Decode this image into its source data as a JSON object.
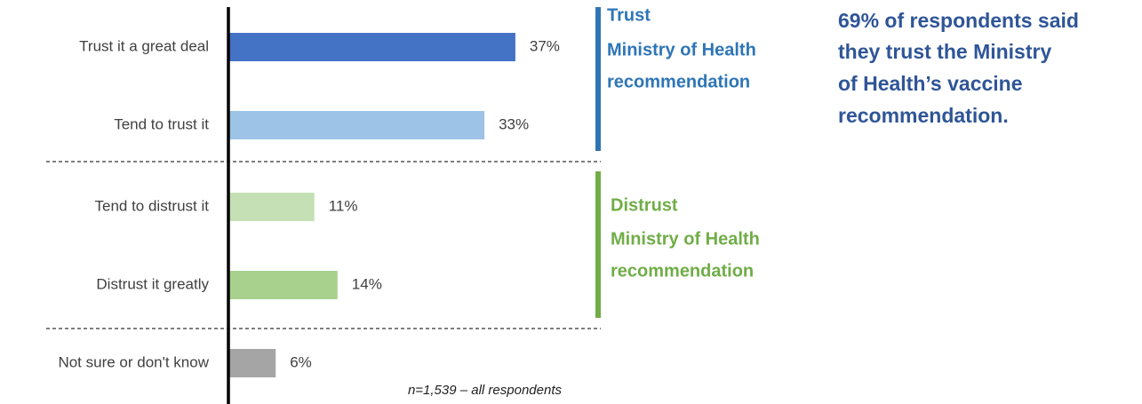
{
  "chart_data": {
    "type": "bar",
    "orientation": "horizontal",
    "categories": [
      "Trust it a great deal",
      "Tend to trust it",
      "Tend to distrust it",
      "Distrust it greatly",
      "Not sure or don't know"
    ],
    "values": [
      37,
      33,
      11,
      14,
      6
    ],
    "value_labels": [
      "37%",
      "33%",
      "11%",
      "14%",
      "6%"
    ],
    "colors": [
      "#4472c4",
      "#9dc3e6",
      "#c5e0b4",
      "#a9d18e",
      "#a5a5a5"
    ],
    "groups": [
      {
        "lines": [
          "Trust",
          "Ministry of Health",
          "recommendation"
        ],
        "color": "#2e75b6"
      },
      {
        "lines": [
          "Distrust",
          "Ministry of Health",
          "recommendation"
        ],
        "color": "#70ad47"
      }
    ],
    "callout": {
      "lines": [
        "69% of respondents said",
        "they trust the Ministry",
        "of Health’s vaccine",
        "recommendation."
      ],
      "color": "#2f5597"
    },
    "footnote": "n=1,539 – all respondents"
  }
}
